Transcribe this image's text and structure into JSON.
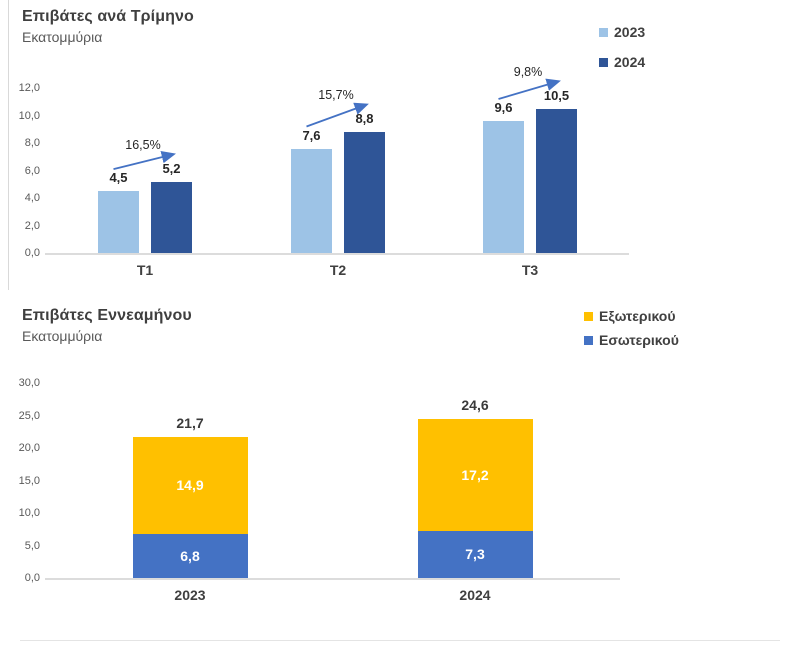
{
  "colors": {
    "light_blue_2023": "#9dc3e6",
    "dark_blue_2024": "#2f5597",
    "yellow_external": "#ffc000",
    "blue_internal": "#4472c4",
    "arrow_accent": "#4472c4",
    "axis_line": "#dcdcdc"
  },
  "chart_data": [
    {
      "type": "bar",
      "title": "Επιβάτες ανά Τρίμηνο",
      "subtitle": "Εκατομμύρια",
      "categories": [
        "T1",
        "T2",
        "T3"
      ],
      "series": [
        {
          "name": "2023",
          "color": "#9dc3e6",
          "values": [
            4.5,
            7.6,
            9.6
          ],
          "labels": [
            "4,5",
            "7,6",
            "9,6"
          ]
        },
        {
          "name": "2024",
          "color": "#2f5597",
          "values": [
            5.2,
            8.8,
            10.5
          ],
          "labels": [
            "5,2",
            "8,8",
            "10,5"
          ]
        }
      ],
      "growth_labels": [
        "16,5%",
        "15,7%",
        "9,8%"
      ],
      "ylim": [
        0,
        12
      ],
      "y_ticks": [
        "0,0",
        "2,0",
        "4,0",
        "6,0",
        "8,0",
        "10,0",
        "12,0"
      ],
      "legend_position": "top-right",
      "grid": false
    },
    {
      "type": "bar",
      "stacked": true,
      "title": "Επιβάτες Εννεαμήνου",
      "subtitle": "Εκατομμύρια",
      "categories": [
        "2023",
        "2024"
      ],
      "series": [
        {
          "name": "Εσωτερικού",
          "color": "#4472c4",
          "values": [
            6.8,
            7.3
          ],
          "labels": [
            "6,8",
            "7,3"
          ]
        },
        {
          "name": "Εξωτερικού",
          "color": "#ffc000",
          "values": [
            14.9,
            17.2
          ],
          "labels": [
            "14,9",
            "17,2"
          ]
        }
      ],
      "totals": [
        21.7,
        24.6
      ],
      "total_labels": [
        "21,7",
        "24,6"
      ],
      "ylim": [
        0,
        30
      ],
      "y_ticks": [
        "0,0",
        "5,0",
        "10,0",
        "15,0",
        "20,0",
        "25,0",
        "30,0"
      ],
      "legend_position": "top-right",
      "grid": false
    }
  ]
}
